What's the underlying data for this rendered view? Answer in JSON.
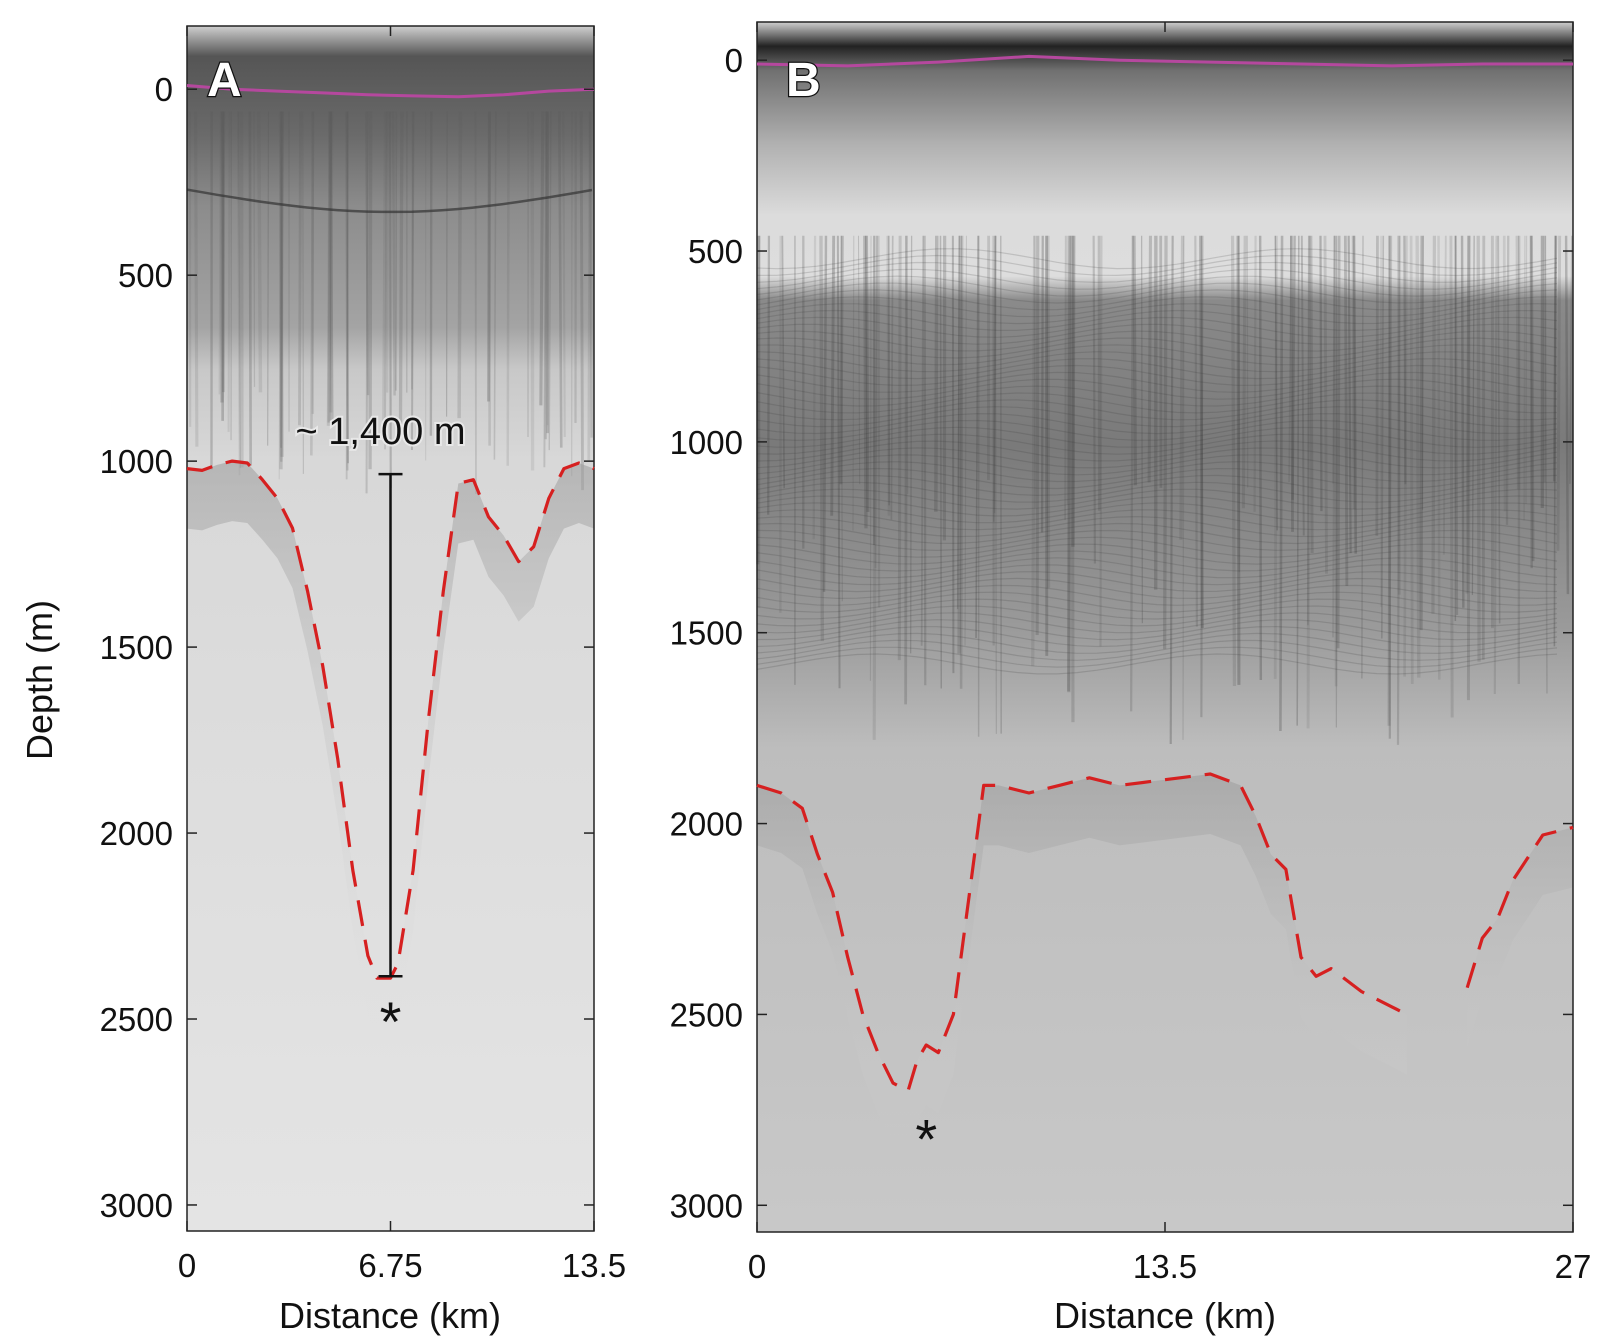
{
  "chart_data": [
    {
      "type": "line",
      "panel_label": "A",
      "xlabel": "Distance (km)",
      "ylabel": "Depth (m)",
      "xlim": [
        0,
        13.5
      ],
      "ylim": [
        3070,
        -170
      ],
      "x_ticks": [
        0,
        6.75,
        13.5
      ],
      "x_tick_labels": [
        "0",
        "6.75",
        "13.5"
      ],
      "y_ticks": [
        0,
        500,
        1000,
        1500,
        2000,
        2500,
        3000
      ],
      "y_tick_labels": [
        "0",
        "500",
        "1000",
        "1500",
        "2000",
        "2500",
        "3000"
      ],
      "grid": false,
      "background": "radar echogram (grayscale)",
      "series": [
        {
          "kind": "surface",
          "color": "#b5489e",
          "style": "solid",
          "x": [
            0,
            1.5,
            3,
            4.5,
            6,
            7.5,
            9,
            10.5,
            12,
            13.5
          ],
          "y": [
            -10,
            0,
            5,
            10,
            15,
            18,
            20,
            15,
            5,
            0
          ]
        },
        {
          "kind": "bed",
          "color": "#d62020",
          "style": "dashed",
          "x": [
            0,
            0.5,
            1,
            1.5,
            2,
            2.5,
            3,
            3.5,
            4,
            4.5,
            5,
            5.5,
            6,
            6.3,
            6.5,
            6.75,
            7,
            7.5,
            8,
            8.5,
            9,
            9.5,
            10,
            10.5,
            11,
            11.5,
            12,
            12.5,
            13,
            13.5
          ],
          "y": [
            1020,
            1025,
            1010,
            1000,
            1005,
            1050,
            1100,
            1180,
            1350,
            1550,
            1800,
            2100,
            2330,
            2390,
            2390,
            2390,
            2350,
            2100,
            1700,
            1350,
            1060,
            1050,
            1150,
            1200,
            1270,
            1230,
            1100,
            1020,
            1005,
            1020
          ]
        }
      ],
      "annotations": [
        {
          "text": "~ 1,400 m",
          "x": 6.75,
          "y_top": 1035,
          "y_bottom": 2385
        },
        {
          "text": "*",
          "x": 6.75,
          "y": 2500
        }
      ]
    },
    {
      "type": "line",
      "panel_label": "B",
      "xlabel": "Distance (km)",
      "ylabel": "",
      "xlim": [
        0,
        27
      ],
      "ylim": [
        3070,
        -100
      ],
      "x_ticks": [
        0,
        13.5,
        27
      ],
      "x_tick_labels": [
        "0",
        "13.5",
        "27"
      ],
      "y_ticks": [
        0,
        500,
        1000,
        1500,
        2000,
        2500,
        3000
      ],
      "y_tick_labels": [
        "0",
        "500",
        "1000",
        "1500",
        "2000",
        "2500",
        "3000"
      ],
      "grid": false,
      "background": "radar echogram (grayscale)",
      "series": [
        {
          "kind": "surface",
          "color": "#b5489e",
          "style": "solid",
          "x": [
            0,
            3,
            6,
            9,
            12,
            15,
            18,
            21,
            24,
            27
          ],
          "y": [
            10,
            15,
            5,
            -10,
            0,
            5,
            10,
            15,
            10,
            10
          ]
        },
        {
          "kind": "bed",
          "color": "#d62020",
          "style": "dashed",
          "x": [
            0,
            0.8,
            1.5,
            2,
            2.5,
            3,
            3.5,
            4,
            4.5,
            5,
            5.3,
            5.6,
            6,
            6.5,
            7,
            7.5,
            8,
            9,
            10,
            11,
            12,
            13,
            14,
            15,
            16,
            16.5,
            17,
            17.5,
            18,
            18.5,
            19,
            20,
            21,
            21.5
          ],
          "y": [
            1900,
            1920,
            1960,
            2080,
            2180,
            2350,
            2500,
            2600,
            2680,
            2700,
            2620,
            2580,
            2600,
            2500,
            2200,
            1900,
            1900,
            1920,
            1900,
            1880,
            1900,
            1890,
            1880,
            1870,
            1900,
            1980,
            2080,
            2120,
            2350,
            2400,
            2380,
            2440,
            2480,
            2500
          ]
        },
        {
          "kind": "bed",
          "color": "#d62020",
          "style": "dashed",
          "x": [
            23.5,
            24,
            24.5,
            25,
            25.5,
            26,
            26.5,
            27
          ],
          "y": [
            2430,
            2300,
            2250,
            2150,
            2090,
            2030,
            2020,
            2010
          ]
        }
      ],
      "annotations": [
        {
          "text": "*",
          "x": 5.6,
          "y": 2820
        }
      ]
    }
  ]
}
